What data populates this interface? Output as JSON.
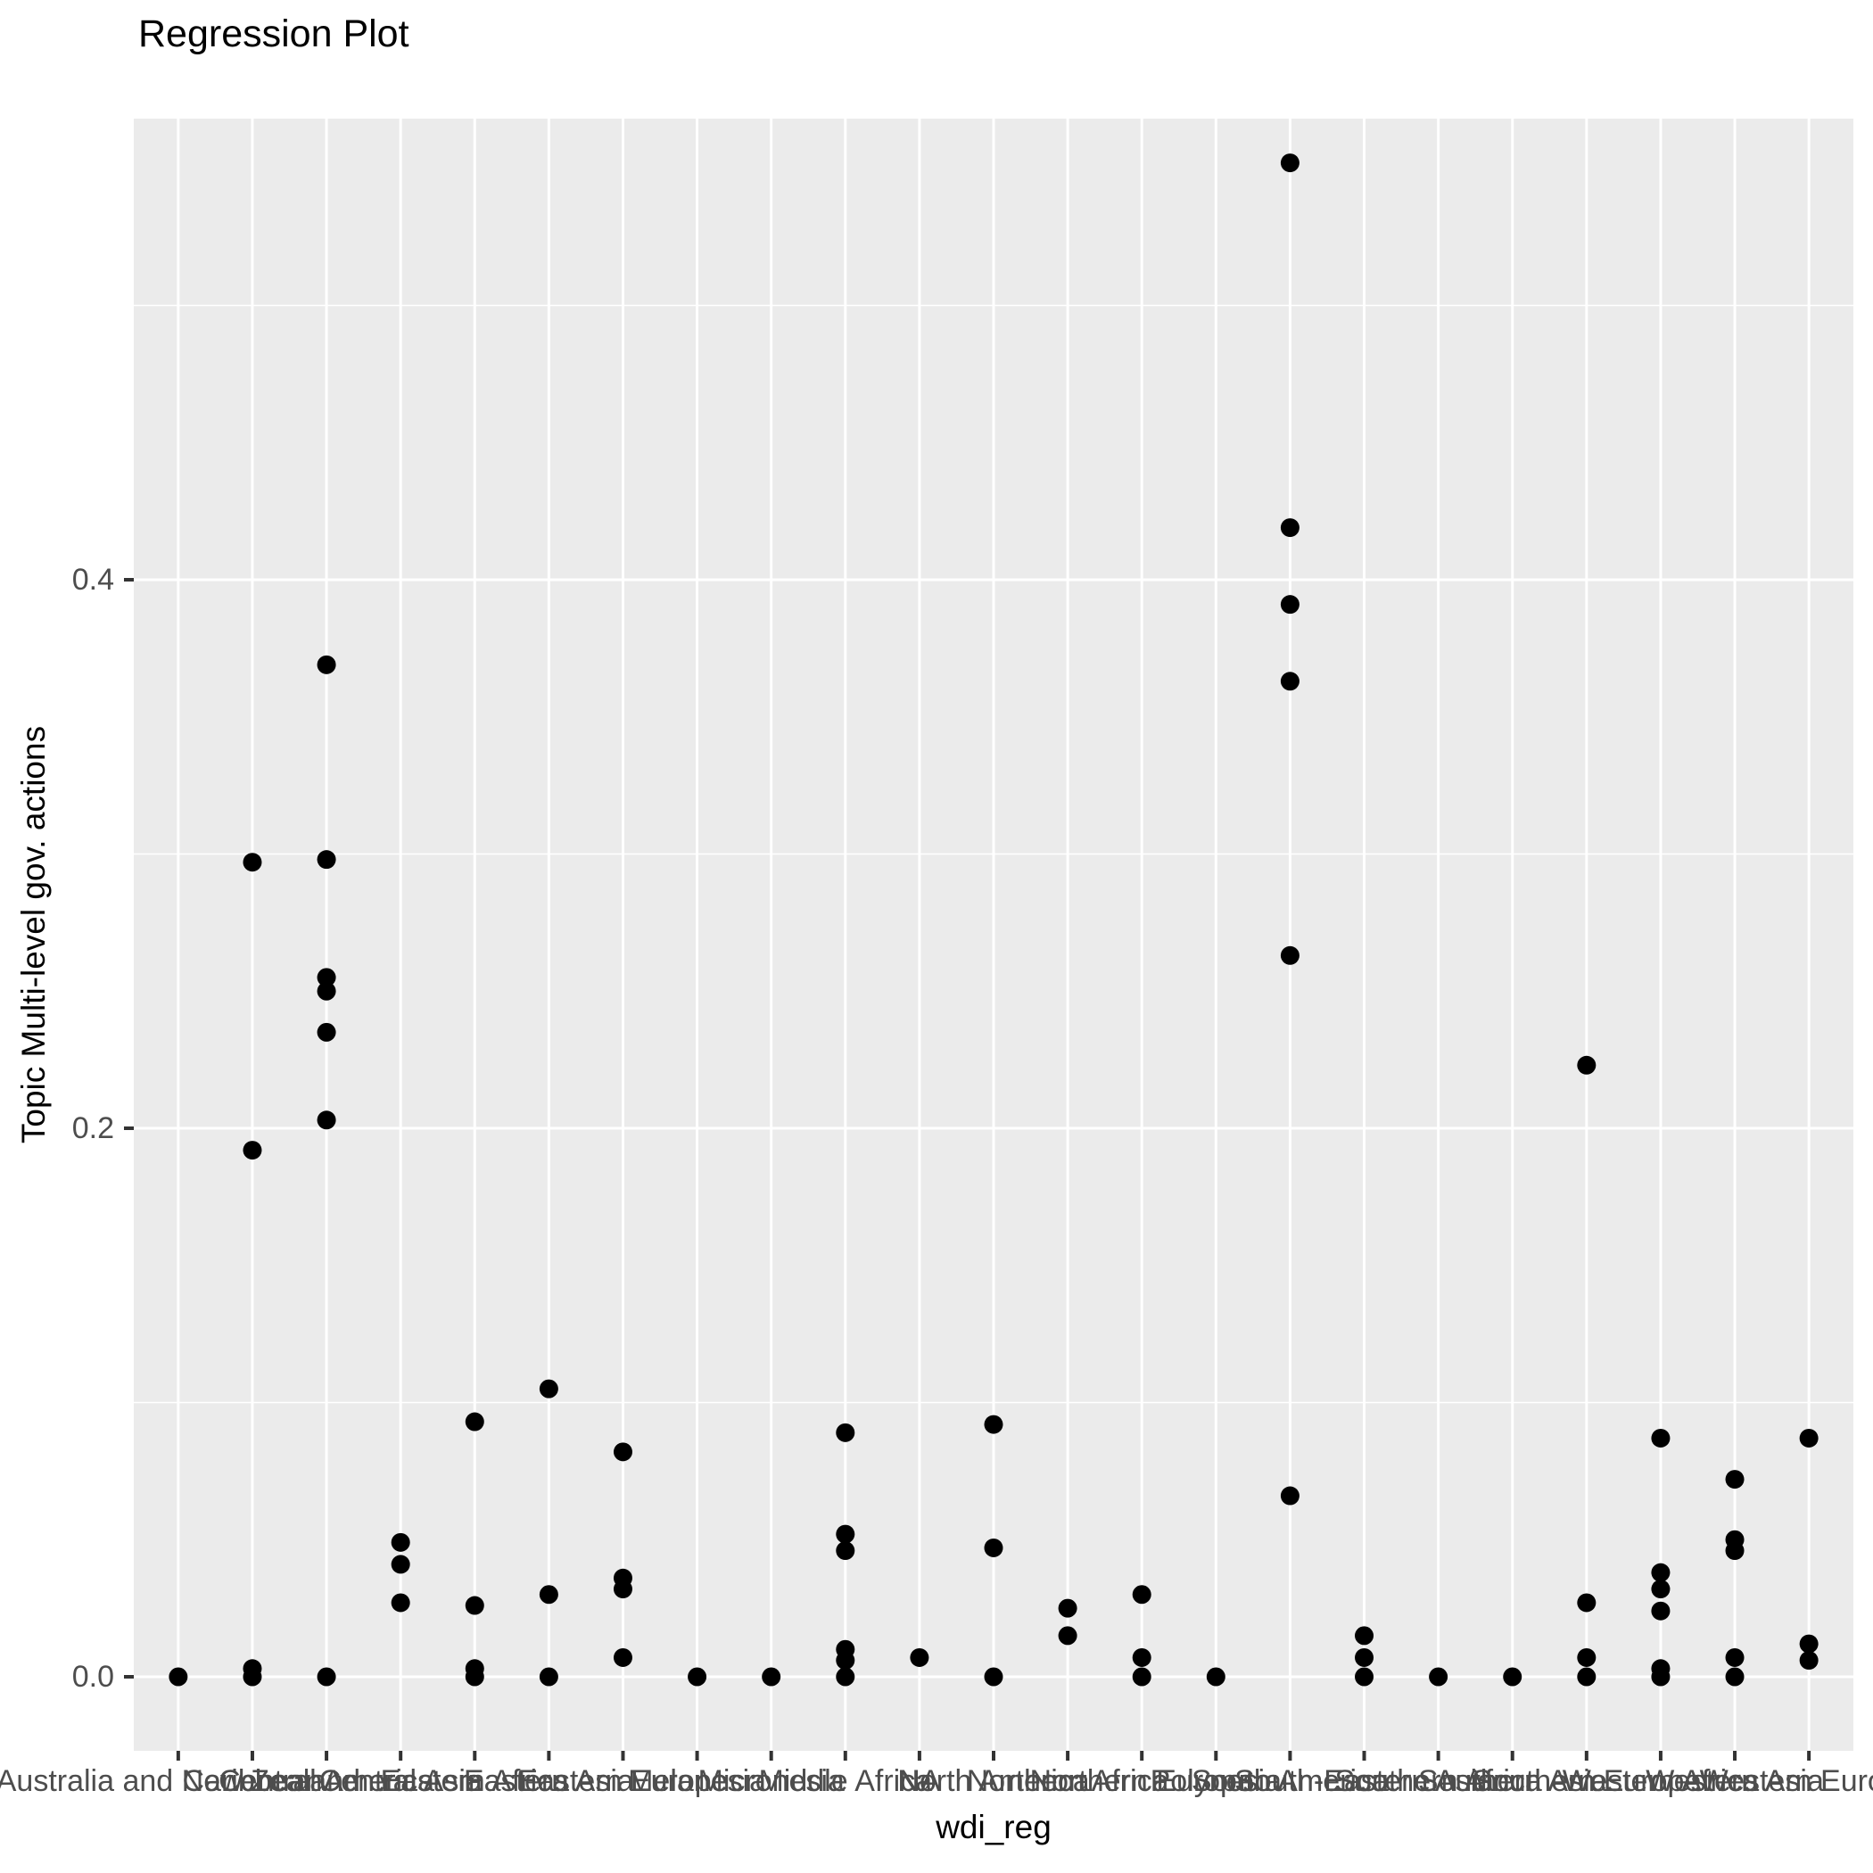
{
  "chart_data": {
    "type": "scatter",
    "title": "Regression Plot",
    "xlabel": "wdi_reg",
    "ylabel": "Topic Multi-level gov. actions",
    "legend_position": "none",
    "grid": true,
    "x_axis": {
      "categories": [
        "Australia and New Zealand",
        "Caribbean",
        "Central America",
        "Central Asia",
        "Eastern Africa",
        "Eastern Asia",
        "Eastern Europe",
        "Melanesia",
        "Micronesia",
        "Middle Africa",
        "NA",
        "North America",
        "Northern Africa",
        "Northern Europe",
        "Polynesia",
        "South America",
        "South-Eastern Asia",
        "Southern Africa",
        "Southern Asia",
        "Southern Europe",
        "Western Africa",
        "Western Asia",
        "Western Europe"
      ]
    },
    "y_axis": {
      "tick_labels": [
        "0.0",
        "0.2",
        "0.4"
      ],
      "tick_values": [
        0.0,
        0.2,
        0.4
      ],
      "minor_tick_values": [
        0.1,
        0.3,
        0.5
      ],
      "range": [
        -0.027,
        0.568
      ]
    },
    "points": [
      {
        "category": "Australia and New Zealand",
        "values": [
          0.0
        ]
      },
      {
        "category": "Caribbean",
        "values": [
          0.297,
          0.192,
          0.003,
          0.0
        ]
      },
      {
        "category": "Central America",
        "values": [
          0.369,
          0.298,
          0.255,
          0.25,
          0.235,
          0.203,
          0.0
        ]
      },
      {
        "category": "Central Asia",
        "values": [
          0.049,
          0.041,
          0.027
        ]
      },
      {
        "category": "Eastern Africa",
        "values": [
          0.093,
          0.026,
          0.003,
          0.0
        ]
      },
      {
        "category": "Eastern Asia",
        "values": [
          0.105,
          0.03,
          0.0
        ]
      },
      {
        "category": "Eastern Europe",
        "values": [
          0.082,
          0.036,
          0.032,
          0.007
        ]
      },
      {
        "category": "Melanesia",
        "values": [
          0.0
        ]
      },
      {
        "category": "Micronesia",
        "values": [
          0.0
        ]
      },
      {
        "category": "Middle Africa",
        "values": [
          0.089,
          0.052,
          0.046,
          0.01,
          0.006,
          0.0
        ]
      },
      {
        "category": "NA",
        "values": [
          0.007
        ]
      },
      {
        "category": "North America",
        "values": [
          0.092,
          0.047,
          0.0
        ]
      },
      {
        "category": "Northern Africa",
        "values": [
          0.025,
          0.015
        ]
      },
      {
        "category": "Northern Europe",
        "values": [
          0.03,
          0.007,
          0.0
        ]
      },
      {
        "category": "Polynesia",
        "values": [
          0.0
        ]
      },
      {
        "category": "South America",
        "values": [
          0.552,
          0.419,
          0.391,
          0.363,
          0.263,
          0.066
        ]
      },
      {
        "category": "South-Eastern Asia",
        "values": [
          0.015,
          0.007,
          0.0
        ]
      },
      {
        "category": "Southern Africa",
        "values": [
          0.0
        ]
      },
      {
        "category": "Southern Asia",
        "values": [
          0.0
        ]
      },
      {
        "category": "Southern Europe",
        "values": [
          0.223,
          0.027,
          0.007,
          0.0
        ]
      },
      {
        "category": "Western Africa",
        "values": [
          0.087,
          0.038,
          0.032,
          0.024,
          0.003,
          0.0
        ]
      },
      {
        "category": "Western Asia",
        "values": [
          0.072,
          0.05,
          0.046,
          0.007,
          0.0
        ]
      },
      {
        "category": "Western Europe",
        "values": [
          0.087,
          0.012,
          0.006
        ]
      }
    ],
    "style": {
      "panel_bg": "#ebebeb",
      "grid_color": "#ffffff",
      "point_color": "#000000",
      "tick_label_color": "#4d4d4d",
      "axis_tick_color": "#333333",
      "title_color": "#000000"
    }
  }
}
